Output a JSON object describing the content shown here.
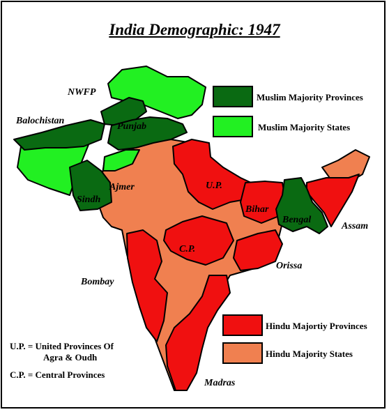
{
  "title": "India Demographic: 1947",
  "colors": {
    "muslim_provinces": "#0a6a12",
    "muslim_states": "#22f022",
    "hindu_provinces": "#f01010",
    "hindu_states": "#f08050",
    "outline": "#000000"
  },
  "legend": [
    {
      "label": "Muslim Majority Provinces",
      "color": "#0a6a12"
    },
    {
      "label": "Muslim Majority States",
      "color": "#22f022"
    },
    {
      "label": "Hindu Majortiy Provinces",
      "color": "#f01010"
    },
    {
      "label": "Hindu Majority States",
      "color": "#f08050"
    }
  ],
  "regions": {
    "nwfp": "NWFP",
    "balochistan": "Balochistan",
    "punjab": "Punjab",
    "sindh": "Sindh",
    "ajmer": "Ajmer",
    "up": "U.P.",
    "bihar": "Bihar",
    "bengal": "Bengal",
    "assam": "Assam",
    "cp": "C.P.",
    "orissa": "Orissa",
    "bombay": "Bombay",
    "madras": "Madras"
  },
  "notes": {
    "up_line1": "U.P. = United Provinces Of",
    "up_line2": "Agra & Oudh",
    "cp_line": "C.P. = Central Provinces"
  }
}
